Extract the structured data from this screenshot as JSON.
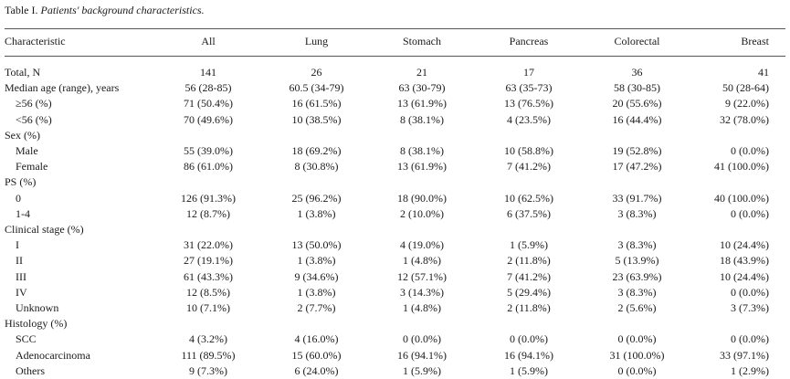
{
  "caption": {
    "label": "Table I.",
    "title": "Patients' background characteristics."
  },
  "header": [
    "Characteristic",
    "All",
    "Lung",
    "Stomach",
    "Pancreas",
    "Colorectal",
    "Breast"
  ],
  "rows": [
    {
      "label": "Total, N",
      "indent": false,
      "values": [
        "141",
        "26",
        "21",
        "17",
        "36",
        "41"
      ]
    },
    {
      "label": "Median age (range), years",
      "indent": false,
      "values": [
        "56 (28-85)",
        "60.5 (34-79)",
        "63 (30-79)",
        "63 (35-73)",
        "58 (30-85)",
        "50 (28-64)"
      ]
    },
    {
      "label": "≥56 (%)",
      "indent": true,
      "values": [
        "71 (50.4%)",
        "16 (61.5%)",
        "13 (61.9%)",
        "13 (76.5%)",
        "20 (55.6%)",
        "9 (22.0%)"
      ]
    },
    {
      "label": "<56 (%)",
      "indent": true,
      "values": [
        "70 (49.6%)",
        "10 (38.5%)",
        "8 (38.1%)",
        "4 (23.5%)",
        "16 (44.4%)",
        "32 (78.0%)"
      ]
    },
    {
      "label": "Sex (%)",
      "indent": false,
      "values": [
        "",
        "",
        "",
        "",
        "",
        ""
      ]
    },
    {
      "label": "Male",
      "indent": true,
      "values": [
        "55 (39.0%)",
        "18 (69.2%)",
        "8 (38.1%)",
        "10 (58.8%)",
        "19 (52.8%)",
        "0 (0.0%)"
      ]
    },
    {
      "label": "Female",
      "indent": true,
      "values": [
        "86 (61.0%)",
        "8 (30.8%)",
        "13 (61.9%)",
        "7 (41.2%)",
        "17 (47.2%)",
        "41 (100.0%)"
      ]
    },
    {
      "label": "PS (%)",
      "indent": false,
      "values": [
        "",
        "",
        "",
        "",
        "",
        ""
      ]
    },
    {
      "label": "0",
      "indent": true,
      "values": [
        "126 (91.3%)",
        "25 (96.2%)",
        "18 (90.0%)",
        "10 (62.5%)",
        "33 (91.7%)",
        "40 (100.0%)"
      ]
    },
    {
      "label": "1-4",
      "indent": true,
      "values": [
        "12 (8.7%)",
        "1 (3.8%)",
        "2 (10.0%)",
        "6 (37.5%)",
        "3 (8.3%)",
        "0 (0.0%)"
      ]
    },
    {
      "label": "Clinical stage (%)",
      "indent": false,
      "values": [
        "",
        "",
        "",
        "",
        "",
        ""
      ]
    },
    {
      "label": "I",
      "indent": true,
      "values": [
        "31 (22.0%)",
        "13 (50.0%)",
        "4 (19.0%)",
        "1 (5.9%)",
        "3 (8.3%)",
        "10 (24.4%)"
      ]
    },
    {
      "label": "II",
      "indent": true,
      "values": [
        "27 (19.1%)",
        "1 (3.8%)",
        "1 (4.8%)",
        "2 (11.8%)",
        "5 (13.9%)",
        "18 (43.9%)"
      ]
    },
    {
      "label": "III",
      "indent": true,
      "values": [
        "61 (43.3%)",
        "9 (34.6%)",
        "12 (57.1%)",
        "7 (41.2%)",
        "23 (63.9%)",
        "10 (24.4%)"
      ]
    },
    {
      "label": "IV",
      "indent": true,
      "values": [
        "12 (8.5%)",
        "1 (3.8%)",
        "3 (14.3%)",
        "5 (29.4%)",
        "3 (8.3%)",
        "0 (0.0%)"
      ]
    },
    {
      "label": "Unknown",
      "indent": true,
      "values": [
        "10 (7.1%)",
        "2 (7.7%)",
        "1 (4.8%)",
        "2 (11.8%)",
        "2 (5.6%)",
        "3 (7.3%)"
      ]
    },
    {
      "label": "Histology (%)",
      "indent": false,
      "values": [
        "",
        "",
        "",
        "",
        "",
        ""
      ]
    },
    {
      "label": "SCC",
      "indent": true,
      "values": [
        "4 (3.2%)",
        "4 (16.0%)",
        "0 (0.0%)",
        "0 (0.0%)",
        "0 (0.0%)",
        "0 (0.0%)"
      ]
    },
    {
      "label": "Adenocarcinoma",
      "indent": true,
      "values": [
        "111 (89.5%)",
        "15 (60.0%)",
        "16 (94.1%)",
        "16 (94.1%)",
        "31 (100.0%)",
        "33 (97.1%)"
      ]
    },
    {
      "label": "Others",
      "indent": true,
      "values": [
        "9 (7.3%)",
        "6 (24.0%)",
        "1 (5.9%)",
        "1 (5.9%)",
        "0 (0.0%)",
        "1 (2.9%)"
      ]
    }
  ]
}
